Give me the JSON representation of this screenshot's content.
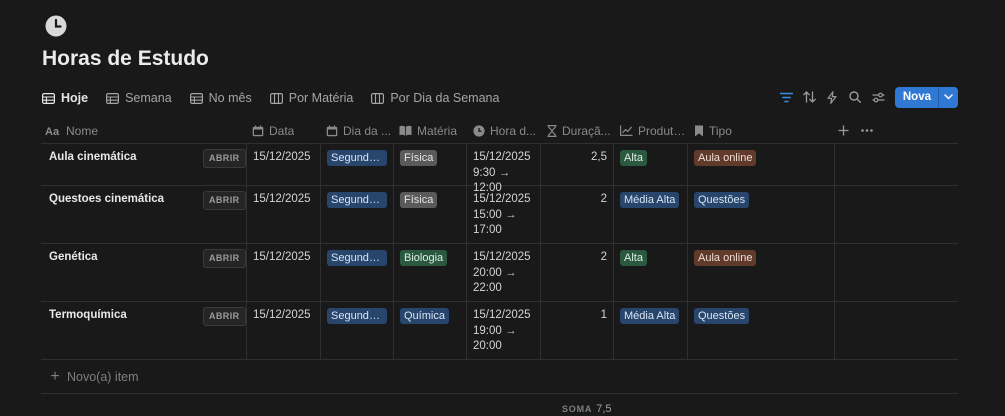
{
  "page": {
    "title": "Horas de Estudo",
    "icon": "clock-icon"
  },
  "tabs": [
    {
      "label": "Hoje",
      "icon": "table-icon",
      "active": true
    },
    {
      "label": "Semana",
      "icon": "table-icon"
    },
    {
      "label": "No mês",
      "icon": "table-icon"
    },
    {
      "label": "Por Matéria",
      "icon": "board-icon"
    },
    {
      "label": "Por Dia da Semana",
      "icon": "board-icon"
    }
  ],
  "toolbar": {
    "new_label": "Nova",
    "accent": "#2f79d5",
    "filter_active_color": "#3d8be0"
  },
  "columns": [
    {
      "label": "Nome",
      "icon": "text-icon"
    },
    {
      "label": "Data",
      "icon": "calendar-icon"
    },
    {
      "label": "Dia da ...",
      "icon": "calendar-icon"
    },
    {
      "label": "Matéria",
      "icon": "book-icon"
    },
    {
      "label": "Hora d...",
      "icon": "clock-icon"
    },
    {
      "label": "Duraçã...",
      "icon": "hourglass-icon"
    },
    {
      "label": "Produti...",
      "icon": "trend-icon"
    },
    {
      "label": "Tipo",
      "icon": "bookmark-icon"
    }
  ],
  "rows": [
    {
      "name": "Aula cinemática",
      "open_label": "ABRIR",
      "date": "15/12/2025",
      "weekday": "Segunda-feira",
      "subject": "Física",
      "time_l1": "15/12/2025",
      "time_l2": "9:30 → 12:00",
      "time_l3": "",
      "duration": "2,5",
      "productivity": "Alta",
      "type": "Aula online"
    },
    {
      "name": "Questoes cinemática",
      "open_label": "ABRIR",
      "date": "15/12/2025",
      "weekday": "Segunda-feira",
      "subject": "Física",
      "time_l1": "15/12/2025",
      "time_l2": "15:00 →",
      "time_l3": "17:00",
      "duration": "2",
      "productivity": "Média Alta",
      "type": "Questões"
    },
    {
      "name": "Genética",
      "open_label": "ABRIR",
      "date": "15/12/2025",
      "weekday": "Segunda-feira",
      "subject": "Biologia",
      "time_l1": "15/12/2025",
      "time_l2": "20:00 →",
      "time_l3": "22:00",
      "duration": "2",
      "productivity": "Alta",
      "type": "Aula online"
    },
    {
      "name": "Termoquímica",
      "open_label": "ABRIR",
      "date": "15/12/2025",
      "weekday": "Segunda-feira",
      "subject": "Química",
      "time_l1": "15/12/2025",
      "time_l2": "19:00 →",
      "time_l3": "20:00",
      "duration": "1",
      "productivity": "Média Alta",
      "type": "Questões"
    }
  ],
  "footer": {
    "new_item_label": "Novo(a) item",
    "sum_label": "SOMA",
    "sum_value": "7,5"
  }
}
